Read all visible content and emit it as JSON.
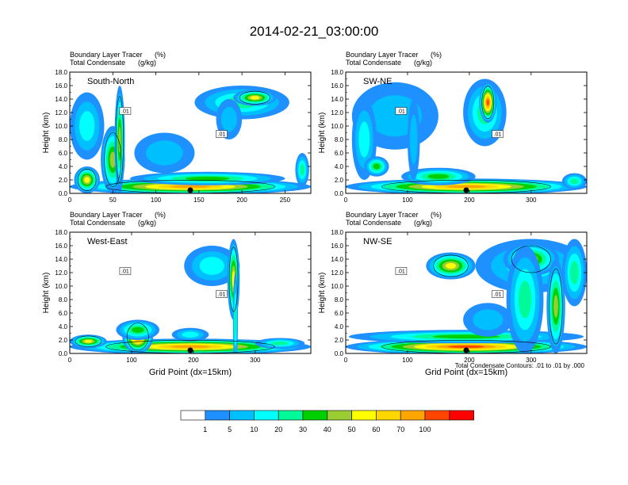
{
  "title": "2014-02-21_03:00:00",
  "panel_header": {
    "line1": "Boundary Layer Tracer",
    "unit1": "(%)",
    "line2": "Total Condensate",
    "unit2": "(g/kg)"
  },
  "footnote": "Total Condensate Contours: .01 to .01 by .000",
  "colors": [
    "#ffffff",
    "#1e90ff",
    "#00bfff",
    "#00ffff",
    "#00fa9a",
    "#00d000",
    "#9acd32",
    "#ffff00",
    "#ffd700",
    "#ffa500",
    "#ff4500",
    "#ff0000"
  ],
  "colorbar_labels": [
    "1",
    "5",
    "10",
    "20",
    "30",
    "40",
    "50",
    "60",
    "70",
    "100"
  ],
  "chart_data": [
    {
      "type": "heatmap",
      "panel_label": "South-North",
      "ylabel": "Height (km)",
      "xlabel": "",
      "xlim": [
        0,
        280
      ],
      "ylim": [
        0,
        18
      ],
      "xticks": [
        0,
        50,
        100,
        150,
        200,
        250
      ],
      "yticks": [
        "0.0",
        "2.0",
        "4.0",
        "6.0",
        "8.0",
        "10.0",
        "12.0",
        "14.0",
        "16.0",
        "18.0"
      ],
      "marker_x": 140,
      "contour_labels": [
        ".01",
        ".01"
      ],
      "blobs": [
        {
          "x": 140,
          "y": 1,
          "rx": 140,
          "ry": 1.2,
          "v": 9
        },
        {
          "x": 160,
          "y": 2.2,
          "rx": 90,
          "ry": 1.0,
          "v": 5
        },
        {
          "x": 50,
          "y": 5,
          "rx": 14,
          "ry": 5,
          "v": 6
        },
        {
          "x": 58,
          "y": 8,
          "rx": 6,
          "ry": 8,
          "v": 6
        },
        {
          "x": 20,
          "y": 10,
          "rx": 20,
          "ry": 5,
          "v": 3
        },
        {
          "x": 200,
          "y": 13.5,
          "rx": 55,
          "ry": 2.5,
          "v": 4
        },
        {
          "x": 215,
          "y": 14.2,
          "rx": 25,
          "ry": 1.2,
          "v": 7
        },
        {
          "x": 185,
          "y": 11,
          "rx": 15,
          "ry": 3,
          "v": 2
        },
        {
          "x": 110,
          "y": 6,
          "rx": 35,
          "ry": 3,
          "v": 2
        },
        {
          "x": 270,
          "y": 3.5,
          "rx": 8,
          "ry": 2.5,
          "v": 4
        },
        {
          "x": 20,
          "y": 2,
          "rx": 15,
          "ry": 2,
          "v": 7
        }
      ]
    },
    {
      "type": "heatmap",
      "panel_label": "SW-NE",
      "ylabel": "Height (km)",
      "xlabel": "",
      "xlim": [
        0,
        390
      ],
      "ylim": [
        0,
        18
      ],
      "xticks": [
        0,
        100,
        200,
        300
      ],
      "yticks": [
        "0.0",
        "2.0",
        "4.0",
        "6.0",
        "8.0",
        "10.0",
        "12.0",
        "14.0",
        "16.0",
        "18.0"
      ],
      "marker_x": 195,
      "contour_labels": [
        ".01",
        ".01"
      ],
      "blobs": [
        {
          "x": 195,
          "y": 1,
          "rx": 195,
          "ry": 1.2,
          "v": 9
        },
        {
          "x": 150,
          "y": 2.5,
          "rx": 60,
          "ry": 1.3,
          "v": 5
        },
        {
          "x": 80,
          "y": 11.5,
          "rx": 70,
          "ry": 5,
          "v": 2
        },
        {
          "x": 225,
          "y": 12,
          "rx": 35,
          "ry": 5,
          "v": 4
        },
        {
          "x": 230,
          "y": 13.5,
          "rx": 14,
          "ry": 3,
          "v": 10
        },
        {
          "x": 30,
          "y": 8,
          "rx": 20,
          "ry": 6,
          "v": 3
        },
        {
          "x": 110,
          "y": 8,
          "rx": 10,
          "ry": 6,
          "v": 2
        },
        {
          "x": 370,
          "y": 1.8,
          "rx": 20,
          "ry": 1.2,
          "v": 4
        },
        {
          "x": 50,
          "y": 4,
          "rx": 20,
          "ry": 1.5,
          "v": 5
        }
      ]
    },
    {
      "type": "heatmap",
      "panel_label": "West-East",
      "ylabel": "Height (km)",
      "xlabel": "Grid Point (dx=15km)",
      "xlim": [
        0,
        390
      ],
      "ylim": [
        0,
        18
      ],
      "xticks": [
        0,
        100,
        200,
        300
      ],
      "yticks": [
        "0.0",
        "2.0",
        "4.0",
        "6.0",
        "8.0",
        "10.0",
        "12.0",
        "14.0",
        "16.0",
        "18.0"
      ],
      "marker_x": 195,
      "contour_labels": [
        ".01",
        ".01"
      ],
      "blobs": [
        {
          "x": 195,
          "y": 1,
          "rx": 195,
          "ry": 1.2,
          "v": 9
        },
        {
          "x": 110,
          "y": 2.5,
          "rx": 25,
          "ry": 2.5,
          "v": 10
        },
        {
          "x": 110,
          "y": 3.5,
          "rx": 35,
          "ry": 1.5,
          "v": 5
        },
        {
          "x": 230,
          "y": 13,
          "rx": 45,
          "ry": 3,
          "v": 3
        },
        {
          "x": 265,
          "y": 11,
          "rx": 10,
          "ry": 6,
          "v": 7
        },
        {
          "x": 268,
          "y": 5,
          "rx": 4,
          "ry": 7,
          "v": 4
        },
        {
          "x": 195,
          "y": 2.8,
          "rx": 30,
          "ry": 1,
          "v": 3
        },
        {
          "x": 30,
          "y": 1.8,
          "rx": 30,
          "ry": 1,
          "v": 7
        },
        {
          "x": 340,
          "y": 1.5,
          "rx": 40,
          "ry": 0.8,
          "v": 4
        }
      ]
    },
    {
      "type": "heatmap",
      "panel_label": "NW-SE",
      "ylabel": "Height (km)",
      "xlabel": "Grid Point (dx=15km)",
      "xlim": [
        0,
        390
      ],
      "ylim": [
        0,
        18
      ],
      "xticks": [
        0,
        100,
        200,
        300
      ],
      "yticks": [
        "0.0",
        "2.0",
        "4.0",
        "6.0",
        "8.0",
        "10.0",
        "12.0",
        "14.0",
        "16.0",
        "18.0"
      ],
      "marker_x": 195,
      "contour_labels": [
        ".01",
        ".01"
      ],
      "blobs": [
        {
          "x": 195,
          "y": 1,
          "rx": 195,
          "ry": 1.2,
          "v": 10
        },
        {
          "x": 195,
          "y": 2.5,
          "rx": 190,
          "ry": 1.0,
          "v": 5
        },
        {
          "x": 300,
          "y": 13,
          "rx": 90,
          "ry": 4,
          "v": 3
        },
        {
          "x": 300,
          "y": 14,
          "rx": 45,
          "ry": 2.5,
          "v": 6
        },
        {
          "x": 170,
          "y": 13,
          "rx": 40,
          "ry": 2,
          "v": 7
        },
        {
          "x": 290,
          "y": 8,
          "rx": 30,
          "ry": 8,
          "v": 4
        },
        {
          "x": 340,
          "y": 7,
          "rx": 15,
          "ry": 7,
          "v": 6
        },
        {
          "x": 370,
          "y": 12,
          "rx": 20,
          "ry": 5,
          "v": 4
        },
        {
          "x": 230,
          "y": 5,
          "rx": 40,
          "ry": 2.5,
          "v": 2
        }
      ]
    }
  ]
}
